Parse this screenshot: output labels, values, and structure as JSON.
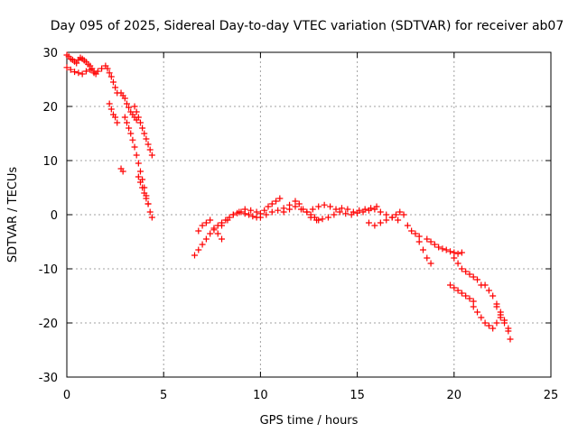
{
  "chart_data": {
    "type": "scatter",
    "title": "Day 095 of 2025, Sidereal Day-to-day VTEC variation (SDTVAR) for receiver ab07",
    "xlabel": "GPS time / hours",
    "ylabel": "SDTVAR / TECUs",
    "xlim": [
      0,
      25
    ],
    "ylim": [
      -30,
      30
    ],
    "xticks": [
      "0",
      "5",
      "10",
      "15",
      "20",
      "25"
    ],
    "yticks": [
      "-30",
      "-20",
      "-10",
      "0",
      "10",
      "20",
      "30"
    ],
    "grid": true,
    "marker": "+",
    "color": "#ff0000",
    "series": [
      {
        "name": "SDTVAR",
        "x": [
          0.0,
          0.1,
          0.2,
          0.3,
          0.4,
          0.5,
          0.6,
          0.7,
          0.8,
          0.9,
          1.0,
          1.1,
          1.2,
          1.3,
          1.4,
          1.5,
          0.0,
          0.2,
          0.4,
          0.6,
          0.8,
          1.0,
          1.2,
          1.4,
          1.6,
          1.8,
          2.0,
          2.1,
          2.2,
          2.3,
          2.4,
          2.5,
          2.6,
          2.2,
          2.3,
          2.4,
          2.5,
          2.6,
          2.8,
          2.9,
          3.0,
          3.1,
          3.2,
          3.3,
          3.4,
          3.5,
          3.6,
          3.0,
          3.1,
          3.2,
          3.3,
          3.4,
          3.5,
          3.6,
          3.7,
          3.8,
          3.9,
          4.0,
          4.1,
          4.2,
          4.3,
          4.4,
          3.5,
          3.6,
          3.7,
          3.8,
          3.9,
          4.0,
          4.1,
          4.2,
          4.3,
          4.4,
          3.7,
          3.8,
          3.9,
          4.0,
          4.1,
          4.2,
          2.8,
          2.9,
          6.6,
          6.8,
          7.0,
          7.2,
          7.4,
          7.6,
          7.8,
          8.0,
          8.2,
          8.4,
          8.6,
          8.8,
          9.0,
          9.2,
          9.4,
          9.6,
          9.8,
          6.8,
          7.0,
          7.2,
          7.4,
          7.6,
          7.8,
          8.0,
          8.0,
          8.3,
          8.6,
          8.9,
          9.2,
          9.5,
          9.8,
          10.0,
          10.2,
          10.4,
          10.6,
          10.8,
          11.0,
          10.0,
          10.3,
          10.6,
          10.9,
          11.2,
          11.5,
          11.8,
          12.0,
          12.2,
          12.4,
          12.6,
          12.8,
          13.0,
          11.2,
          11.5,
          11.8,
          12.1,
          12.4,
          12.7,
          13.0,
          13.3,
          13.6,
          13.9,
          14.2,
          14.5,
          14.8,
          15.1,
          15.4,
          15.7,
          16.0,
          12.6,
          12.9,
          13.2,
          13.5,
          13.8,
          14.1,
          14.4,
          14.7,
          15.0,
          15.3,
          15.6,
          15.9,
          16.2,
          16.5,
          16.8,
          17.1,
          15.6,
          15.9,
          16.2,
          16.5,
          16.8,
          17.0,
          17.2,
          17.4,
          17.6,
          17.8,
          18.0,
          18.2,
          18.2,
          18.4,
          18.6,
          18.8,
          18.6,
          18.8,
          19.0,
          19.2,
          19.4,
          19.6,
          19.8,
          20.0,
          20.2,
          20.4,
          20.0,
          20.2,
          20.4,
          20.6,
          20.8,
          21.0,
          21.2,
          21.4,
          19.8,
          20.0,
          20.2,
          20.4,
          20.6,
          20.8,
          21.0,
          21.0,
          21.2,
          21.4,
          21.6,
          21.8,
          22.0,
          22.2,
          22.4,
          21.6,
          21.8,
          22.0,
          22.2,
          22.4,
          22.6,
          22.8,
          22.2,
          22.4,
          22.6,
          22.8,
          22.9
        ],
        "y": [
          29.5,
          29.2,
          28.8,
          28.6,
          28.3,
          28.0,
          28.6,
          29.0,
          28.8,
          28.5,
          28.2,
          27.8,
          27.5,
          27.0,
          26.5,
          26.0,
          27.2,
          26.8,
          26.4,
          26.2,
          26.0,
          26.5,
          26.8,
          26.2,
          26.5,
          27.0,
          27.5,
          27.0,
          26.2,
          25.5,
          24.5,
          23.5,
          22.5,
          20.5,
          19.5,
          18.5,
          18.0,
          17.0,
          22.5,
          22.0,
          21.5,
          20.5,
          19.8,
          19.0,
          18.5,
          18.0,
          17.5,
          18.0,
          17.0,
          16.0,
          15.0,
          13.8,
          12.5,
          11.0,
          9.5,
          8.0,
          6.5,
          5.0,
          3.5,
          2.0,
          0.5,
          -0.5,
          20.0,
          19.0,
          18.0,
          17.0,
          16.0,
          15.0,
          14.0,
          13.0,
          12.0,
          11.0,
          7.0,
          6.0,
          5.0,
          4.0,
          3.0,
          2.0,
          8.5,
          8.0,
          -7.5,
          -6.5,
          -5.5,
          -4.5,
          -3.5,
          -2.8,
          -2.0,
          -1.5,
          -1.0,
          -0.5,
          0.0,
          0.3,
          0.5,
          0.2,
          0.0,
          -0.3,
          -0.5,
          -3.0,
          -2.0,
          -1.5,
          -1.0,
          -2.5,
          -3.5,
          -4.5,
          -2.0,
          -1.0,
          0.0,
          0.5,
          1.0,
          0.8,
          0.5,
          0.2,
          0.8,
          1.5,
          2.0,
          2.5,
          3.0,
          -0.5,
          0.0,
          0.5,
          0.8,
          1.2,
          1.8,
          2.5,
          2.0,
          1.0,
          0.5,
          0.0,
          -0.5,
          -1.0,
          0.5,
          1.0,
          1.5,
          1.0,
          0.5,
          1.0,
          1.5,
          1.8,
          1.5,
          1.0,
          1.2,
          1.0,
          0.5,
          0.8,
          1.0,
          1.2,
          1.5,
          -0.5,
          -1.0,
          -0.8,
          -0.5,
          0.0,
          0.5,
          0.2,
          0.0,
          0.3,
          0.5,
          0.8,
          1.0,
          0.5,
          0.0,
          -0.5,
          -1.0,
          -1.5,
          -2.0,
          -1.5,
          -1.0,
          -0.5,
          0.0,
          0.5,
          0.0,
          -2.0,
          -3.0,
          -3.5,
          -4.0,
          -5.0,
          -6.5,
          -8.0,
          -9.0,
          -4.5,
          -5.0,
          -5.5,
          -6.0,
          -6.3,
          -6.5,
          -6.8,
          -7.0,
          -7.2,
          -7.0,
          -8.0,
          -9.0,
          -10.0,
          -10.5,
          -11.0,
          -11.5,
          -12.0,
          -13.0,
          -13.0,
          -13.5,
          -14.0,
          -14.5,
          -15.0,
          -15.5,
          -16.0,
          -17.0,
          -18.0,
          -19.0,
          -20.0,
          -20.5,
          -21.0,
          -20.0,
          -19.0,
          -13.0,
          -14.0,
          -15.0,
          -16.5,
          -18.0,
          -19.5,
          -21.0,
          -17.0,
          -18.5,
          -20.0,
          -21.5,
          -23.0
        ]
      }
    ]
  }
}
